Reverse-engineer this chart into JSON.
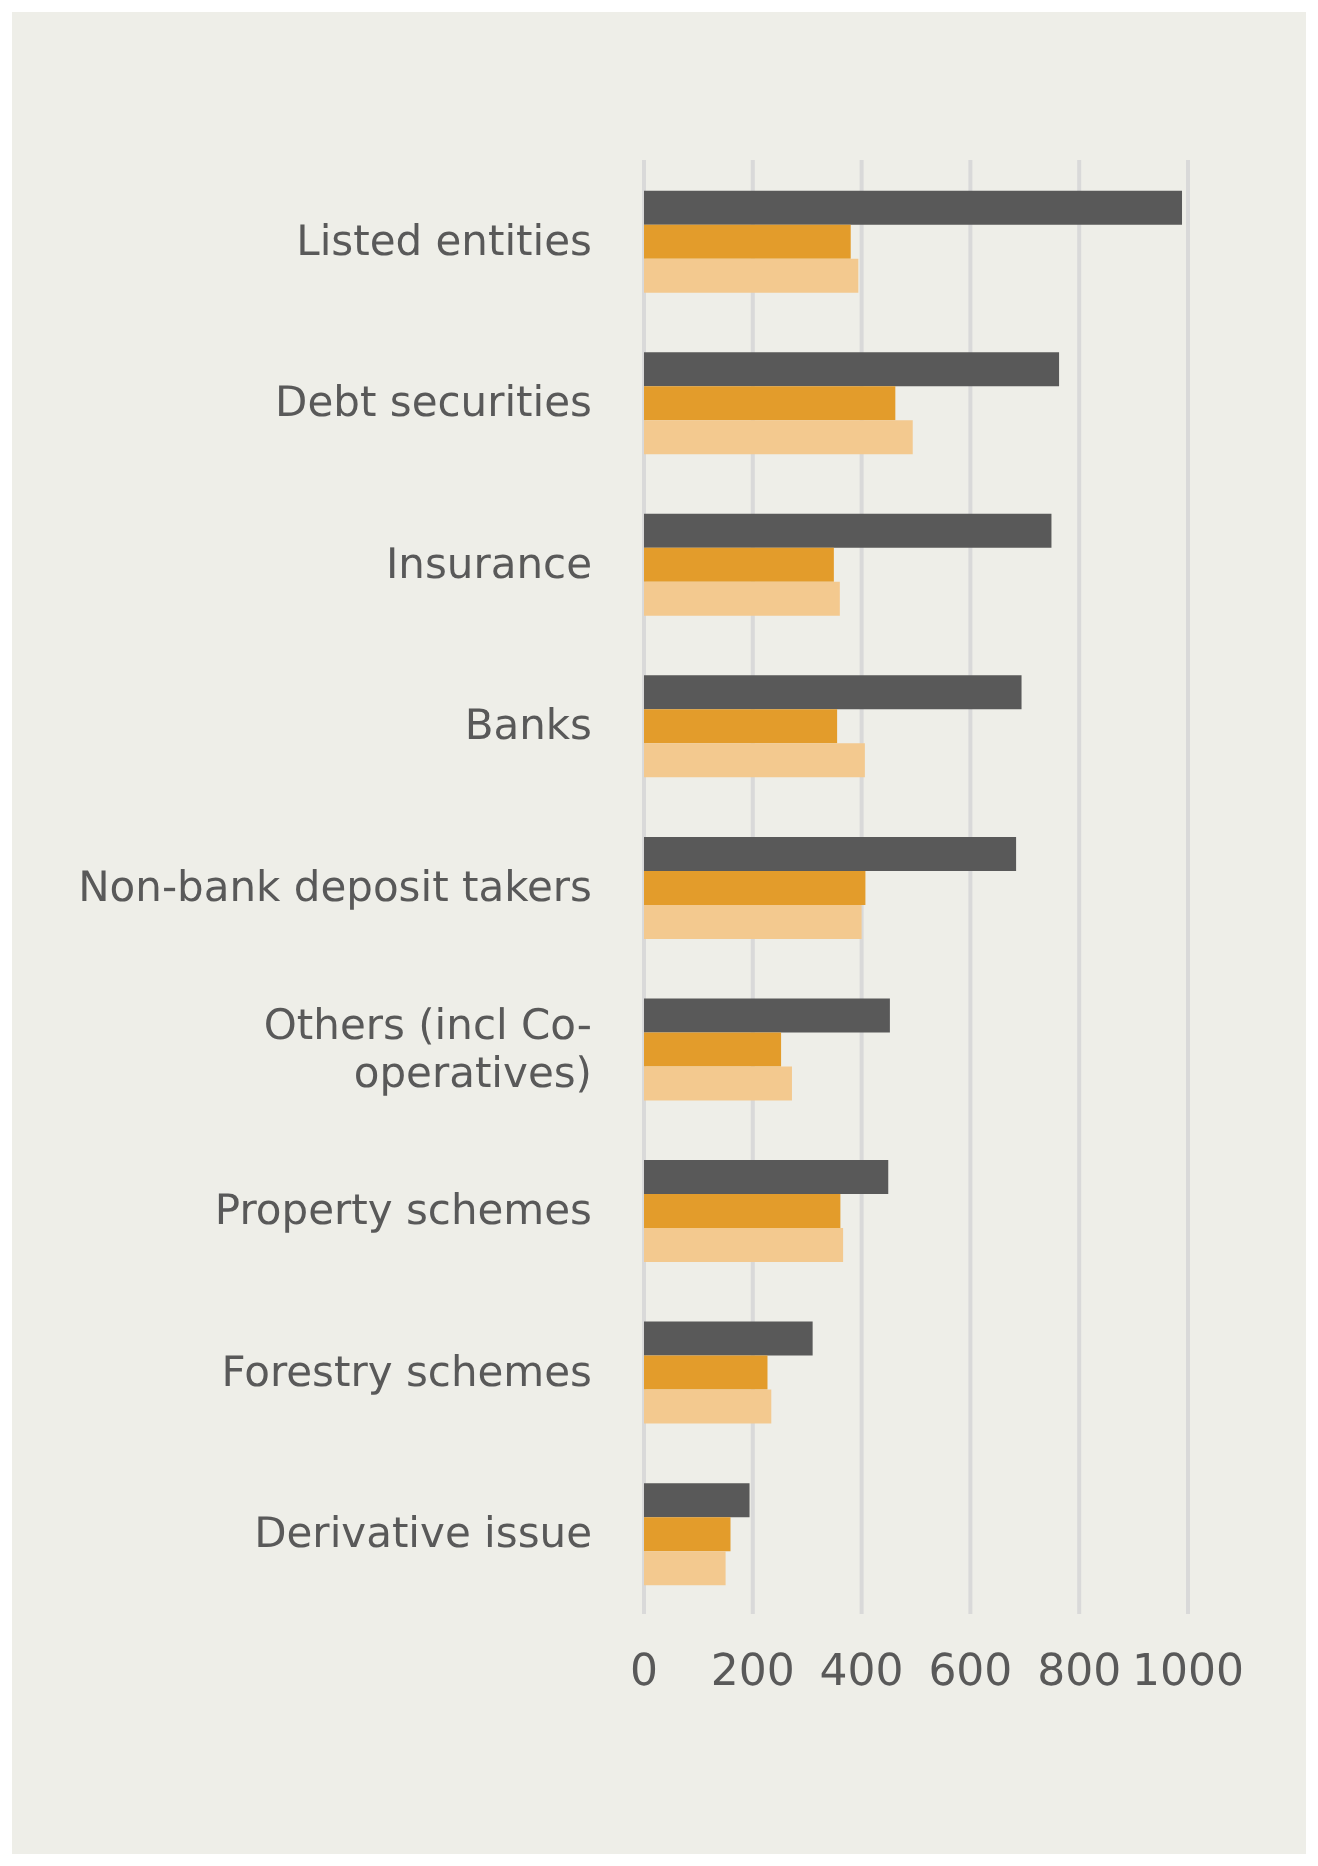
{
  "chart_data": {
    "type": "bar",
    "orientation": "horizontal",
    "categories": [
      "Listed entities",
      "Debt securities",
      "Insurance",
      "Banks",
      "Non-bank deposit takers",
      "Others (incl Co-operatives)",
      "Property schemes",
      "Forestry schemes",
      "Derivative issue"
    ],
    "series": [
      {
        "color": "#595959",
        "values": [
          989,
          763,
          749,
          694,
          684,
          452,
          449,
          310,
          194
        ]
      },
      {
        "color": "#e39c2b",
        "values": [
          380,
          462,
          349,
          355,
          407,
          252,
          361,
          227,
          159
        ]
      },
      {
        "color": "#f3c98f",
        "values": [
          394,
          494,
          360,
          406,
          400,
          272,
          366,
          234,
          150
        ]
      }
    ],
    "xlim": [
      0,
      1000
    ],
    "xticks": [
      0,
      200,
      400,
      600,
      800,
      1000
    ],
    "grid": "x",
    "legend": false
  }
}
